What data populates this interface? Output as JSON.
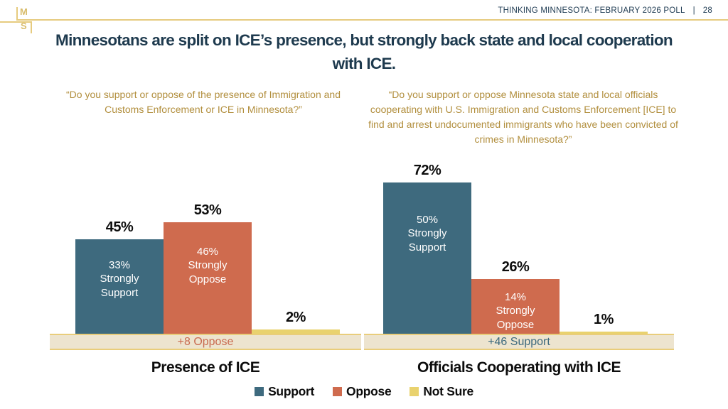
{
  "slide": {
    "logo": {
      "top": "M",
      "bottom": "S"
    },
    "header": {
      "title": "THINKING MINNESOTA: FEBRUARY 2026 POLL",
      "divider": "|",
      "page_number": "28"
    },
    "title": "Minnesotans are split on ICE’s presence, but strongly back state and local cooperation with ICE."
  },
  "colors": {
    "navy_text": "#1E3A4E",
    "question_gold": "#B28F3E",
    "rule_gold": "#E6CB7F",
    "support_blue": "#3E6A7E",
    "oppose_orange": "#CF6B4E",
    "not_sure_yellow": "#E9D26E",
    "band_background": "#EDE4CF",
    "band_border": "#E9CD7B"
  },
  "chart_data": [
    {
      "type": "bar",
      "title": "Presence of ICE",
      "question": "“Do you support or oppose of the presence of Immigration and Customs Enforcement or ICE in Minnesota?”",
      "categories": [
        "Support",
        "Oppose",
        "Not Sure"
      ],
      "values": [
        45,
        53,
        2
      ],
      "value_labels": [
        "45%",
        "53%",
        "2%"
      ],
      "inner_labels": [
        "33%\nStrongly\nSupport",
        "46%\nStrongly\nOppose",
        ""
      ],
      "strongly_support": 33,
      "strongly_oppose": 46,
      "net_annotation": "+8 Oppose",
      "net_color": "#C96A50",
      "ylim": [
        0,
        100
      ],
      "grid": false,
      "legend_position": "bottom"
    },
    {
      "type": "bar",
      "title": "Officials Cooperating with ICE",
      "question": "“Do you support or oppose Minnesota state and local officials cooperating with U.S. Immigration and Customs Enforcement [ICE] to find and arrest undocumented immigrants who have been convicted of crimes in Minnesota?”",
      "categories": [
        "Support",
        "Oppose",
        "Not Sure"
      ],
      "values": [
        72,
        26,
        1
      ],
      "value_labels": [
        "72%",
        "26%",
        "1%"
      ],
      "inner_labels": [
        "50%\nStrongly\nSupport",
        "14%\nStrongly\nOppose",
        ""
      ],
      "strongly_support": 50,
      "strongly_oppose": 14,
      "net_annotation": "+46 Support",
      "net_color": "#3E6A7E",
      "ylim": [
        0,
        100
      ],
      "grid": false,
      "legend_position": "bottom"
    }
  ],
  "legend": [
    {
      "label": "Support",
      "color": "#3E6A7E"
    },
    {
      "label": "Oppose",
      "color": "#CF6B4E"
    },
    {
      "label": "Not Sure",
      "color": "#E9D26E"
    }
  ]
}
